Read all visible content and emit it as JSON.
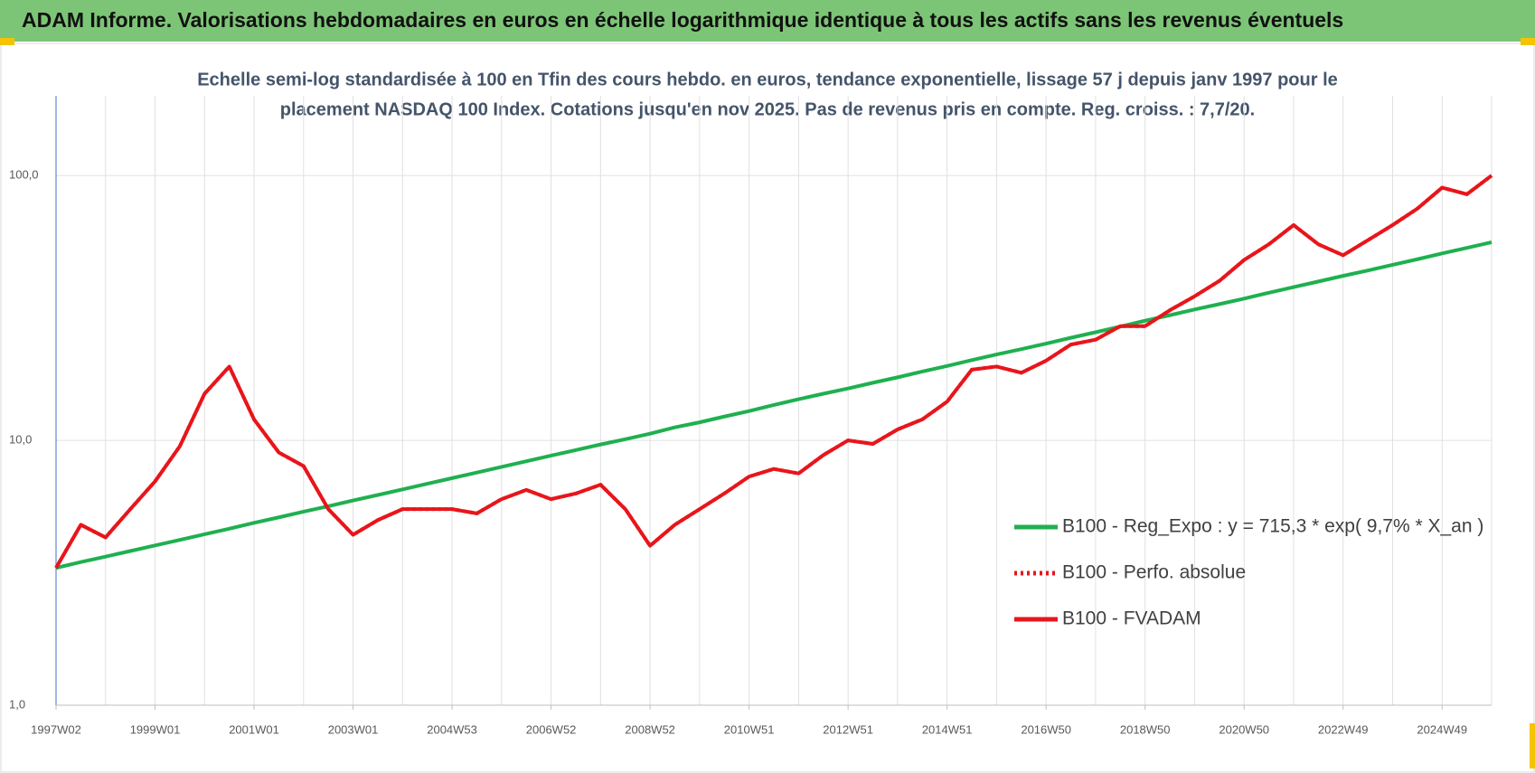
{
  "header": {
    "title": "ADAM Informe. Valorisations hebdomadaires en euros en échelle logarithmique identique à tous les actifs sans les revenus éventuels"
  },
  "chart_data": {
    "type": "line",
    "title": [
      "Echelle semi-log standardisée à 100 en Tfin des cours hebdo. en euros, tendance exponentielle, lissage 57 j depuis janv 1997 pour le",
      "placement NASDAQ 100 Index. Cotations jusqu'en nov 2025. Pas de revenus pris en compte. Reg. croiss. : 7,7/20."
    ],
    "log_scale": true,
    "grid": true,
    "legend": "lower right",
    "categories": [
      "1997W02",
      null,
      null,
      null,
      "1999W01",
      null,
      null,
      null,
      "2001W01",
      null,
      null,
      null,
      "2003W01",
      null,
      null,
      null,
      "2004W53",
      null,
      null,
      null,
      "2006W52",
      null,
      null,
      null,
      "2008W52",
      null,
      null,
      null,
      "2010W51",
      null,
      null,
      null,
      "2012W51",
      null,
      null,
      null,
      "2014W51",
      null,
      null,
      null,
      "2016W50",
      null,
      null,
      null,
      "2018W50",
      null,
      null,
      null,
      "2020W50",
      null,
      null,
      null,
      "2022W49",
      null,
      null,
      null,
      "2024W49",
      null,
      null
    ],
    "ylim": [
      1,
      200
    ],
    "yticks": [
      {
        "value": 1,
        "label": "1,0"
      },
      {
        "value": 10,
        "label": "10,0"
      },
      {
        "value": 100,
        "label": "100,0"
      }
    ],
    "series": [
      {
        "name": "B100 - Reg_Expo : y = 715,3 * exp( 9,7% *  X_an )",
        "color": "#1fb04f",
        "style": "solid",
        "values": [
          3.3,
          3.47,
          3.64,
          3.82,
          4.01,
          4.21,
          4.42,
          4.64,
          4.88,
          5.12,
          5.38,
          5.64,
          5.93,
          6.22,
          6.53,
          6.86,
          7.2,
          7.56,
          7.94,
          8.34,
          8.76,
          9.19,
          9.65,
          10.1,
          10.6,
          11.2,
          11.7,
          12.3,
          12.9,
          13.6,
          14.3,
          15,
          15.7,
          16.5,
          17.3,
          18.2,
          19.1,
          20.1,
          21.1,
          22.1,
          23.2,
          24.4,
          25.6,
          26.9,
          28.3,
          29.7,
          31.2,
          32.7,
          34.3,
          36.1,
          37.9,
          39.8,
          41.8,
          43.8,
          46,
          48.3,
          50.8,
          53.3,
          56
        ]
      },
      {
        "name": "B100 - Perfo. absolue",
        "color": "#e8151b",
        "style": "dotted",
        "values": [
          3.3,
          4.8,
          4.3,
          5.5,
          7,
          9.5,
          15,
          19,
          12,
          9,
          8,
          5.5,
          4.4,
          5,
          5.5,
          5.5,
          5.5,
          5.3,
          6,
          6.5,
          6,
          6.3,
          6.8,
          5.5,
          4,
          4.8,
          5.5,
          6.3,
          7.3,
          7.8,
          7.5,
          8.8,
          10,
          9.7,
          11,
          12,
          14,
          18.5,
          19,
          18,
          20,
          23,
          24,
          27,
          27,
          31,
          35,
          40,
          48,
          55,
          65,
          55,
          50,
          57,
          65,
          75,
          90,
          85,
          100
        ]
      },
      {
        "name": "B100 - FVADAM",
        "color": "#e8151b",
        "style": "solid",
        "values": [
          3.3,
          4.8,
          4.3,
          5.5,
          7,
          9.5,
          15,
          19,
          12,
          9,
          8,
          5.5,
          4.4,
          5,
          5.5,
          5.5,
          5.5,
          5.3,
          6,
          6.5,
          6,
          6.3,
          6.8,
          5.5,
          4,
          4.8,
          5.5,
          6.3,
          7.3,
          7.8,
          7.5,
          8.8,
          10,
          9.7,
          11,
          12,
          14,
          18.5,
          19,
          18,
          20,
          23,
          24,
          27,
          27,
          31,
          35,
          40,
          48,
          55,
          65,
          55,
          50,
          57,
          65,
          75,
          90,
          85,
          100
        ]
      }
    ]
  }
}
